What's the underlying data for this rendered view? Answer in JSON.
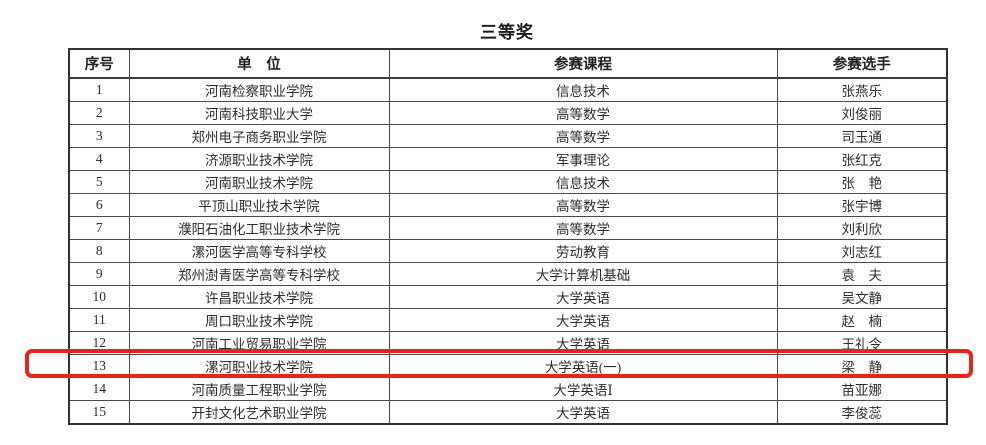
{
  "page": {
    "title": "三等奖"
  },
  "table": {
    "columns": [
      {
        "key": "index",
        "label": "序号"
      },
      {
        "key": "unit",
        "label": "单　位"
      },
      {
        "key": "course",
        "label": "参赛课程"
      },
      {
        "key": "contestant",
        "label": "参赛选手"
      }
    ],
    "rows": [
      {
        "index": "1",
        "unit": "河南检察职业学院",
        "course": "信息技术",
        "contestant": "张燕乐"
      },
      {
        "index": "2",
        "unit": "河南科技职业大学",
        "course": "高等数学",
        "contestant": "刘俊丽"
      },
      {
        "index": "3",
        "unit": "郑州电子商务职业学院",
        "course": "高等数学",
        "contestant": "司玉通"
      },
      {
        "index": "4",
        "unit": "济源职业技术学院",
        "course": "军事理论",
        "contestant": "张红克"
      },
      {
        "index": "5",
        "unit": "河南职业技术学院",
        "course": "信息技术",
        "contestant": "张　艳"
      },
      {
        "index": "6",
        "unit": "平顶山职业技术学院",
        "course": "高等数学",
        "contestant": "张宇博"
      },
      {
        "index": "7",
        "unit": "濮阳石油化工职业技术学院",
        "course": "高等数学",
        "contestant": "刘利欣"
      },
      {
        "index": "8",
        "unit": "漯河医学高等专科学校",
        "course": "劳动教育",
        "contestant": "刘志红"
      },
      {
        "index": "9",
        "unit": "郑州澍青医学高等专科学校",
        "course": "大学计算机基础",
        "contestant": "袁　夫"
      },
      {
        "index": "10",
        "unit": "许昌职业技术学院",
        "course": "大学英语",
        "contestant": "吴文静"
      },
      {
        "index": "11",
        "unit": "周口职业技术学院",
        "course": "大学英语",
        "contestant": "赵　楠"
      },
      {
        "index": "12",
        "unit": "河南工业贸易职业学院",
        "course": "大学英语",
        "contestant": "王礼令"
      },
      {
        "index": "13",
        "unit": "漯河职业技术学院",
        "course": "大学英语(一)",
        "contestant": "梁　静"
      },
      {
        "index": "14",
        "unit": "河南质量工程职业学院",
        "course": "大学英语Ⅰ",
        "contestant": "苗亚娜"
      },
      {
        "index": "15",
        "unit": "开封文化艺术职业学院",
        "course": "大学英语",
        "contestant": "李俊蕊"
      }
    ]
  },
  "highlight": {
    "highlighted_row_number": "13",
    "color": "#e8231c"
  }
}
